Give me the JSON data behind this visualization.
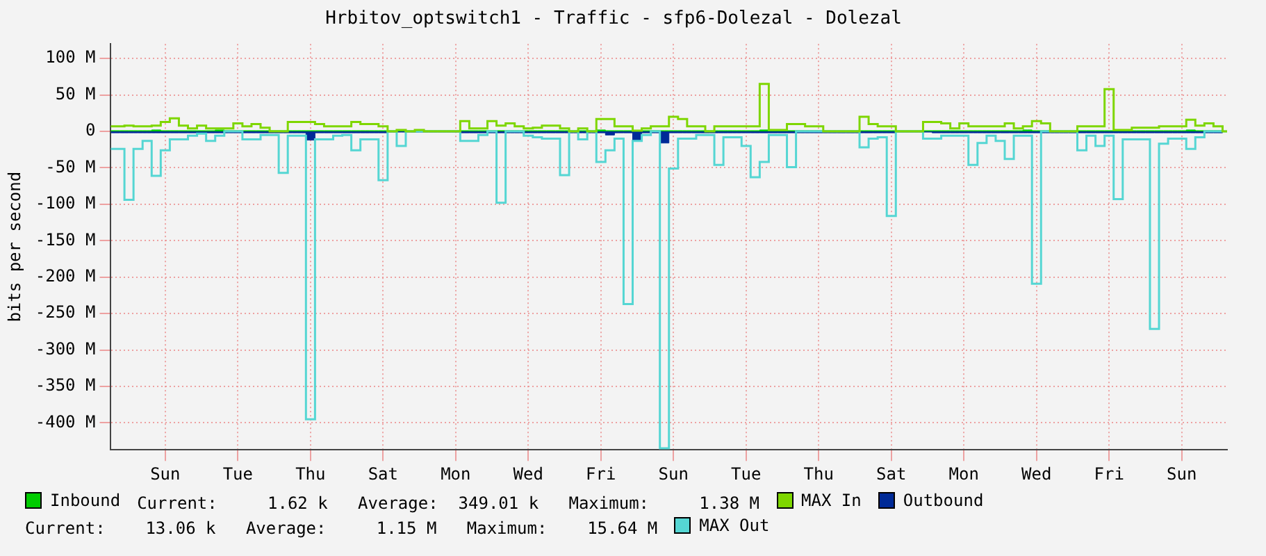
{
  "chart_data": {
    "type": "step",
    "title": "Hrbitov_optswitch1 - Traffic - sfp6-Dolezal - Dolezal",
    "ylabel": "bits per second",
    "categories": [
      null,
      null,
      null,
      null,
      null,
      null,
      "Sun",
      null,
      null,
      null,
      null,
      null,
      null,
      null,
      "Tue",
      null,
      null,
      null,
      null,
      null,
      null,
      null,
      "Thu",
      null,
      null,
      null,
      null,
      null,
      null,
      null,
      "Sat",
      null,
      null,
      null,
      null,
      null,
      null,
      null,
      "Mon",
      null,
      null,
      null,
      null,
      null,
      null,
      null,
      "Wed",
      null,
      null,
      null,
      null,
      null,
      null,
      null,
      "Fri",
      null,
      null,
      null,
      null,
      null,
      null,
      null,
      "Sun",
      null,
      null,
      null,
      null,
      null,
      null,
      null,
      "Tue",
      null,
      null,
      null,
      null,
      null,
      null,
      null,
      "Thu",
      null,
      null,
      null,
      null,
      null,
      null,
      null,
      "Sat",
      null,
      null,
      null,
      null,
      null,
      null,
      null,
      "Mon",
      null,
      null,
      null,
      null,
      null,
      null,
      null,
      "Wed",
      null,
      null,
      null,
      null,
      null,
      null,
      null,
      "Fri",
      null,
      null,
      null,
      null,
      null,
      null,
      null,
      "Sun",
      null,
      null,
      null,
      null,
      null
    ],
    "ylim": [
      -437,
      120
    ],
    "yticks": [
      {
        "value": 100,
        "label": "100 M"
      },
      {
        "value": 50,
        "label": "50 M"
      },
      0,
      {
        "value": -50,
        "label": "-50 M"
      },
      {
        "value": -100,
        "label": "-100 M"
      },
      {
        "value": -150,
        "label": "-150 M"
      },
      {
        "value": -200,
        "label": "-200 M"
      },
      {
        "value": -250,
        "label": "-250 M"
      },
      {
        "value": -300,
        "label": "-300 M"
      },
      {
        "value": -350,
        "label": "-350 M"
      },
      {
        "value": -400,
        "label": "-400 M"
      }
    ],
    "grid": true,
    "legend": "bottom",
    "series": [
      {
        "name": "Inbound",
        "type": "area",
        "color": "#00cc00",
        "values": [
          1,
          1,
          1,
          1,
          1,
          2,
          1,
          1,
          1,
          1,
          1,
          1,
          2,
          1,
          1,
          1,
          1,
          1,
          1,
          1,
          1,
          1,
          1,
          1,
          1,
          1,
          1,
          1,
          1,
          1,
          1,
          1,
          1,
          1,
          1,
          1,
          1,
          1,
          1,
          1,
          1,
          1,
          1,
          1,
          1,
          1,
          1,
          1,
          1,
          1,
          1,
          1,
          1,
          1,
          2,
          1,
          1,
          1,
          1,
          1,
          1,
          1,
          1,
          1,
          1,
          1,
          1,
          1,
          1,
          1,
          1,
          1,
          2,
          1,
          1,
          1,
          1,
          1,
          1,
          1,
          1,
          1,
          1,
          1,
          1,
          1,
          1,
          1,
          1,
          1,
          1,
          1,
          1,
          1,
          1,
          1,
          1,
          1,
          1,
          1,
          1,
          2,
          1,
          1,
          1,
          1,
          1,
          1,
          1,
          1,
          1,
          1,
          1,
          1,
          1,
          1,
          1,
          1,
          1,
          2,
          1,
          1,
          1,
          0
        ]
      },
      {
        "name": "MAX In",
        "color": "#7ed600",
        "values": [
          7,
          7,
          8,
          7,
          7,
          8,
          13,
          18,
          8,
          4,
          8,
          4,
          4,
          4,
          11,
          7,
          10,
          5,
          0,
          0,
          13,
          13,
          13,
          10,
          7,
          7,
          7,
          13,
          10,
          10,
          7,
          0,
          2,
          0,
          2,
          0,
          0,
          0,
          0,
          14,
          4,
          4,
          14,
          8,
          11,
          7,
          4,
          5,
          8,
          8,
          4,
          0,
          4,
          0,
          17,
          17,
          7,
          7,
          1,
          4,
          7,
          7,
          20,
          17,
          7,
          7,
          0,
          7,
          7,
          7,
          7,
          7,
          65,
          2,
          2,
          10,
          10,
          7,
          7,
          0,
          0,
          0,
          0,
          20,
          10,
          7,
          7,
          0,
          0,
          0,
          13,
          13,
          11,
          4,
          11,
          7,
          7,
          7,
          7,
          11,
          4,
          7,
          14,
          11,
          0,
          0,
          0,
          7,
          7,
          7,
          58,
          2,
          2,
          5,
          5,
          5,
          7,
          7,
          7,
          16,
          8,
          11,
          7,
          0
        ]
      },
      {
        "name": "Outbound",
        "type": "area",
        "color": "#002a97",
        "values": [
          -2,
          -2,
          -2,
          -2,
          -2,
          -2,
          -2,
          -2,
          -2,
          -2,
          -2,
          -2,
          -2,
          -2,
          -2,
          -2,
          -2,
          -2,
          -2,
          -2,
          -2,
          -2,
          -12,
          -2,
          -2,
          -2,
          -2,
          -2,
          -2,
          -2,
          -2,
          -1,
          -1,
          -1,
          -1,
          -1,
          -1,
          -1,
          -1,
          -2,
          -2,
          -2,
          -2,
          -2,
          -2,
          -2,
          -2,
          -2,
          -2,
          -2,
          -2,
          -2,
          -2,
          -2,
          -2,
          -5,
          -2,
          -2,
          -12,
          -2,
          -2,
          -16,
          -2,
          -2,
          -2,
          -2,
          -2,
          -2,
          -2,
          -2,
          -2,
          -2,
          -2,
          -2,
          -2,
          -2,
          -2,
          -2,
          -2,
          -2,
          -2,
          -2,
          -2,
          -2,
          -2,
          -2,
          -2,
          -1,
          -1,
          -1,
          -1,
          -2,
          -2,
          -2,
          -2,
          -2,
          -2,
          -2,
          -2,
          -2,
          -2,
          -2,
          -2,
          -2,
          -2,
          -2,
          -2,
          -2,
          -2,
          -2,
          -2,
          -2,
          -2,
          -2,
          -2,
          -2,
          -2,
          -2,
          -2,
          -2,
          -2,
          -2,
          -2,
          0
        ]
      },
      {
        "name": "MAX Out",
        "color": "#55d6d3",
        "values": [
          -24,
          -24,
          -94,
          -24,
          -13,
          -61,
          -26,
          -11,
          -11,
          -6,
          -3,
          -13,
          -6,
          0,
          0,
          -11,
          -11,
          -5,
          -5,
          -57,
          -6,
          -6,
          -395,
          -11,
          -11,
          -6,
          -5,
          -26,
          -11,
          -11,
          -67,
          0,
          -20,
          0,
          0,
          0,
          0,
          0,
          0,
          -13,
          -13,
          -5,
          0,
          -98,
          0,
          0,
          -6,
          -8,
          -10,
          -10,
          -60,
          0,
          -11,
          0,
          -42,
          -26,
          -10,
          -237,
          -13,
          -5,
          0,
          -435,
          -51,
          -10,
          -10,
          -5,
          -5,
          -46,
          -8,
          -8,
          -20,
          -63,
          -42,
          -5,
          -5,
          -49,
          0,
          0,
          0,
          0,
          0,
          0,
          0,
          -22,
          -10,
          -8,
          -116,
          0,
          0,
          0,
          -10,
          -10,
          -6,
          -6,
          -6,
          -46,
          -16,
          -6,
          -13,
          -38,
          -6,
          -6,
          -209,
          0,
          0,
          0,
          0,
          -26,
          -6,
          -20,
          -6,
          -93,
          -11,
          -11,
          -11,
          -271,
          -17,
          -10,
          -10,
          -24,
          -8,
          0,
          0,
          0
        ]
      }
    ],
    "annotations": [
      "Current:     1.62 k   Average:  349.01 k   Maximum:     1.38 M",
      "Current:    13.06 k   Average:     1.15 M   Maximum:    15.64 M"
    ]
  }
}
